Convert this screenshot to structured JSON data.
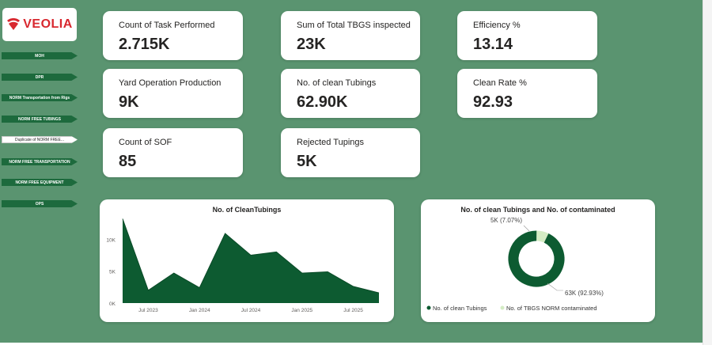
{
  "brand": {
    "logo_text": "VEOLIA"
  },
  "nav": {
    "items": [
      {
        "label": "MOH"
      },
      {
        "label": "DPR"
      },
      {
        "label": "NORM Transportation from Rigs"
      },
      {
        "label": "NORM FREE TUBINGS"
      },
      {
        "label": "Duplicate of NORM FREE..."
      },
      {
        "label": "NORM FREE TRANSPORTATION"
      },
      {
        "label": "NORM FREE EQUIPMENT"
      },
      {
        "label": "OPS"
      }
    ],
    "active_index": 4
  },
  "cards": [
    {
      "label": "Count of Task Performed",
      "value": "2.715K"
    },
    {
      "label": "Sum of Total TBGS inspected",
      "value": "23K"
    },
    {
      "label": "Efficiency %",
      "value": "13.14"
    },
    {
      "label": "Yard Operation Production",
      "value": "9K"
    },
    {
      "label": "No. of clean Tubings",
      "value": "62.90K"
    },
    {
      "label": "Clean Rate %",
      "value": "92.93"
    },
    {
      "label": "Count of SOF",
      "value": "85"
    },
    {
      "label": "Rejected Tupings",
      "value": "5K"
    }
  ],
  "colors": {
    "background": "#5a9470",
    "primary": "#0d5b31",
    "light": "#d4ecc4",
    "brand_red": "#d8282f"
  },
  "chart_data": [
    {
      "type": "area",
      "title": "No. of CleanTubings",
      "ylim": [
        0,
        14000
      ],
      "y_ticks": [
        "0K",
        "5K",
        "10K"
      ],
      "x_ticks": [
        "Jul 2023",
        "Jan 2024",
        "Jul 2024",
        "Jan 2025",
        "Jul 2025"
      ],
      "x": [
        "2023-04",
        "2023-07",
        "2023-10",
        "2024-01",
        "2024-04",
        "2024-07",
        "2024-10",
        "2025-01",
        "2025-04",
        "2025-07",
        "2025-10"
      ],
      "values": [
        13200,
        2000,
        4700,
        2400,
        10900,
        7500,
        8000,
        4700,
        4900,
        2600,
        1600
      ]
    },
    {
      "type": "pie",
      "subtype": "donut",
      "title": "No. of clean Tubings and No. of contaminated",
      "series": [
        {
          "name": "No. of clean Tubings",
          "value": 63,
          "percent": 92.93,
          "label": "63K (92.93%)"
        },
        {
          "name": "No. of TBGS NORM contaminated",
          "value": 5,
          "percent": 7.07,
          "label": "5K (7.07%)"
        }
      ]
    }
  ]
}
